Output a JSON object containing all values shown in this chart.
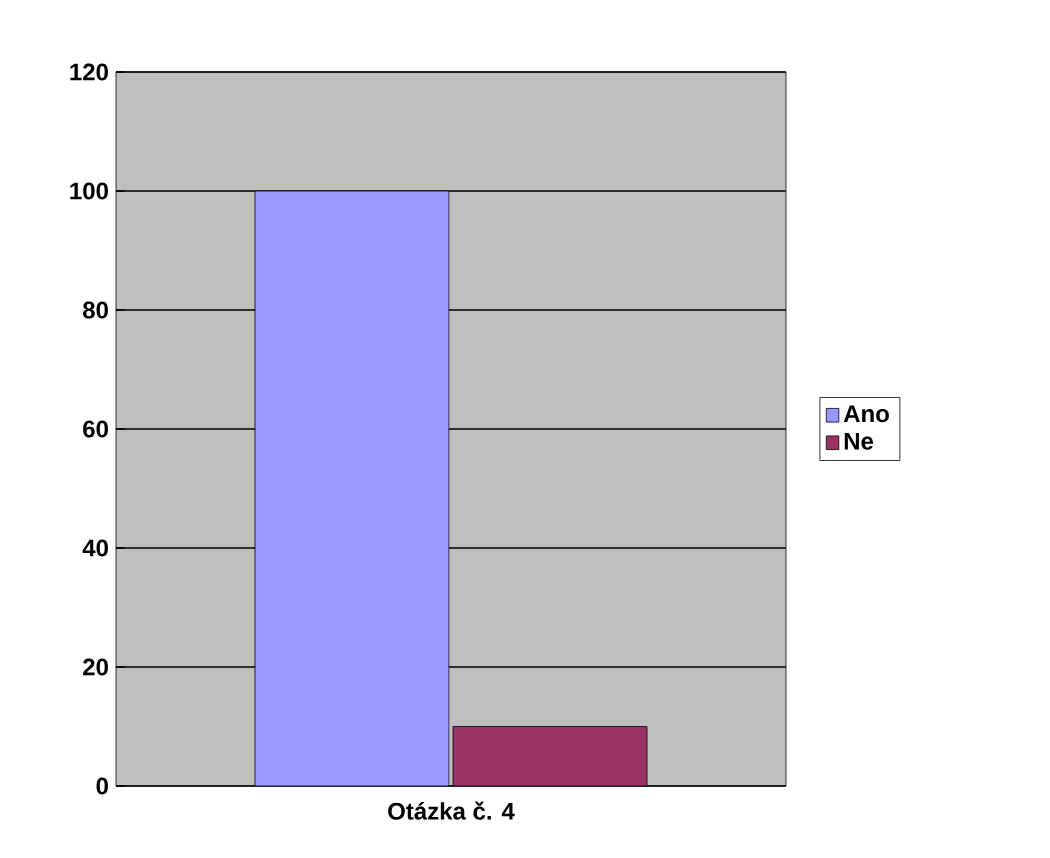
{
  "chart_data": {
    "type": "bar",
    "categories": [
      "Otázka č. 4"
    ],
    "series": [
      {
        "name": "Ano",
        "color": "#9999ff",
        "values": [
          100
        ]
      },
      {
        "name": "Ne",
        "color": "#993366",
        "values": [
          10
        ]
      }
    ],
    "ylim": [
      0,
      120
    ],
    "yticks": [
      0,
      20,
      40,
      60,
      80,
      100,
      120
    ],
    "grid": "y",
    "legend": "right"
  }
}
